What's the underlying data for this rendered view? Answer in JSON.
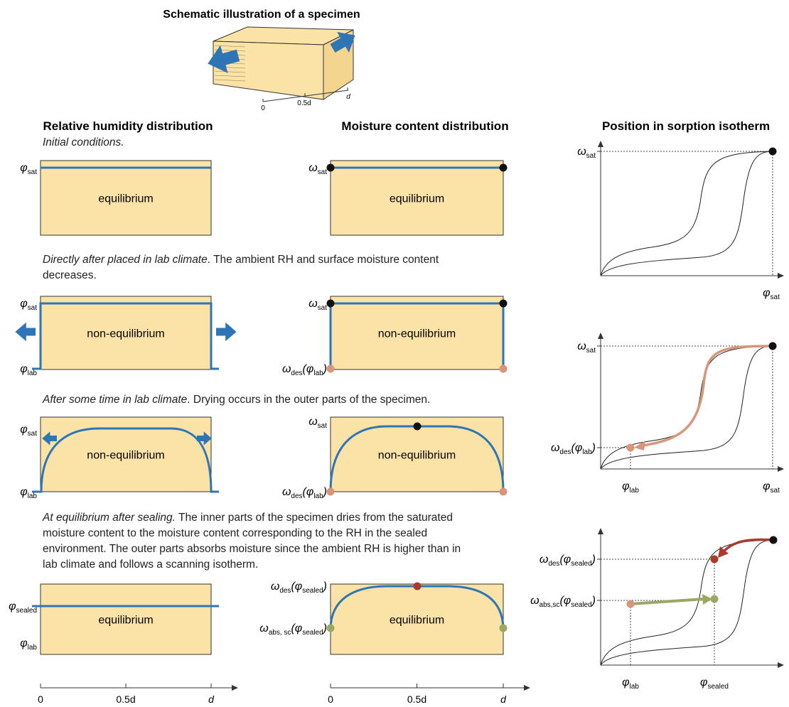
{
  "title": "Schematic  illustration of a specimen",
  "specimen_axis": [
    "0",
    "0.5d",
    "d"
  ],
  "headers": [
    "Relative humidity distribution",
    "Moisture content distribution",
    "Position in sorption isotherm"
  ],
  "stages": [
    {
      "caption": [
        "Initial conditions."
      ],
      "rh": {
        "box": "equilibrium",
        "labels": [
          [
            "φ",
            "sat"
          ]
        ]
      },
      "mc": {
        "box": "equilibrium",
        "labels": [
          [
            "ω",
            "sat"
          ]
        ]
      }
    },
    {
      "caption": [
        "Directly after placed in lab climate",
        ". The ambient RH and surface moisture content decreases."
      ],
      "rh": {
        "box": "non-equilibrium",
        "labels": [
          [
            "φ",
            "sat"
          ],
          [
            "φ",
            "lab"
          ]
        ]
      },
      "mc": {
        "box": "non-equilibrium",
        "labels": [
          [
            "ω",
            "sat"
          ],
          [
            "ω",
            "des",
            "(φ",
            "lab",
            ")"
          ]
        ]
      }
    },
    {
      "caption": [
        "After some time in lab climate",
        ". Drying occurs in the outer parts of the specimen."
      ],
      "rh": {
        "box": "non-equilibrium",
        "labels": [
          [
            "φ",
            "sat"
          ],
          [
            "φ",
            "lab"
          ]
        ]
      },
      "mc": {
        "box": "non-equilibrium",
        "labels": [
          [
            "ω",
            "sat"
          ],
          [
            "ω",
            "des",
            "(φ",
            "lab",
            ")"
          ]
        ]
      }
    },
    {
      "caption": [
        "At equilibrium after sealing.",
        " The inner parts of the specimen dries from the saturated moisture content to the moisture content corresponding to the RH in the sealed environment. The outer parts absorbs moisture since the ambient RH is higher than in lab climate and follows a scanning isotherm."
      ],
      "rh": {
        "box": "equilibrium",
        "labels": [
          [
            "φ",
            "sealed"
          ],
          [
            "φ",
            "lab"
          ]
        ]
      },
      "mc": {
        "box": "equilibrium",
        "labels": [
          [
            "ω",
            "des",
            "(φ",
            "sealed",
            ")"
          ],
          [
            "ω",
            "abs, sc",
            "(φ",
            "sealed",
            ")"
          ]
        ]
      }
    }
  ],
  "isotherms": [
    {
      "y_labels": [
        [
          "ω",
          "sat"
        ]
      ],
      "x_labels": [
        [
          "φ",
          "sat"
        ]
      ]
    },
    {
      "y_labels": [
        [
          "ω",
          "sat"
        ],
        [
          "ω",
          "des",
          "(φ",
          "lab",
          ")"
        ]
      ],
      "x_labels": [
        [
          "φ",
          "lab"
        ],
        [
          "φ",
          "sat"
        ]
      ]
    },
    {
      "y_labels": [
        [
          "ω",
          "des",
          "(φ",
          "sealed",
          ")"
        ],
        [
          "ω",
          "abs,sc",
          "(φ",
          "sealed",
          ")"
        ]
      ],
      "x_labels": [
        [
          "φ",
          "lab"
        ],
        [
          "φ",
          "sealed"
        ]
      ]
    }
  ],
  "distance_axes": {
    "rh": [
      "0",
      "0.5d",
      "d"
    ],
    "mc": [
      "0",
      "0.5d",
      "d"
    ]
  }
}
